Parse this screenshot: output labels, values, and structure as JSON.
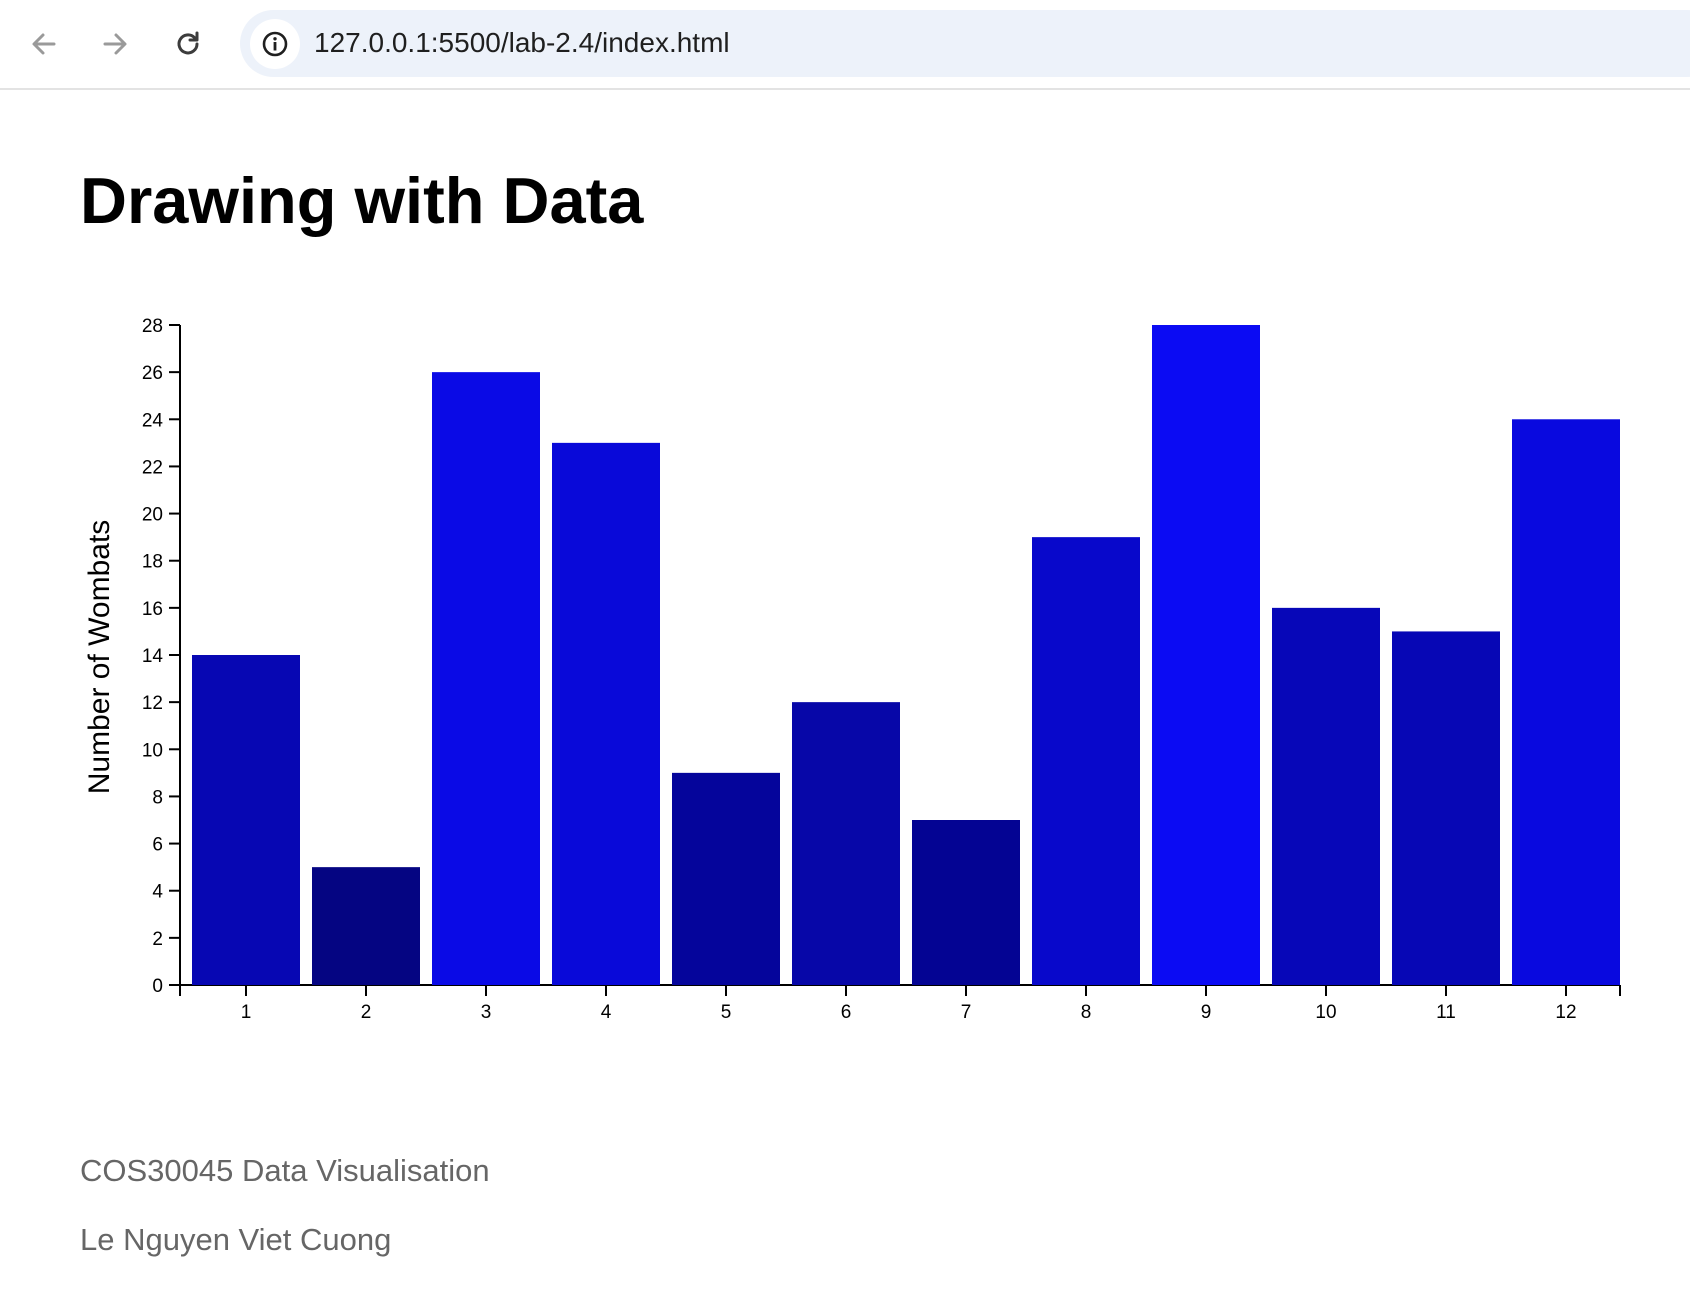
{
  "browser": {
    "url": "127.0.0.1:5500/lab-2.4/index.html",
    "icons": {
      "back": "arrow-left-icon",
      "forward": "arrow-right-icon",
      "reload": "reload-icon",
      "site_info": "info-icon"
    }
  },
  "page": {
    "title": "Drawing with Data",
    "footer": {
      "course": "COS30045 Data Visualisation",
      "author": "Le Nguyen Viet Cuong"
    }
  },
  "chart_data": {
    "type": "bar",
    "title": "",
    "xlabel": "",
    "ylabel": "Number of Wombats",
    "categories": [
      "1",
      "2",
      "3",
      "4",
      "5",
      "6",
      "7",
      "8",
      "9",
      "10",
      "11",
      "12"
    ],
    "values": [
      14,
      5,
      26,
      23,
      9,
      12,
      7,
      19,
      28,
      16,
      15,
      24
    ],
    "ylim": [
      0,
      28
    ],
    "yticks": [
      0,
      2,
      4,
      6,
      8,
      10,
      12,
      14,
      16,
      18,
      20,
      22,
      24,
      26,
      28
    ],
    "grid": false,
    "bar_colors": [
      "#0707b3",
      "#050582",
      "#0a0ae6",
      "#0909d9",
      "#05059b",
      "#0707a8",
      "#040493",
      "#0808cb",
      "#0b0bf3",
      "#0707b8",
      "#0707b5",
      "#0909df"
    ]
  }
}
